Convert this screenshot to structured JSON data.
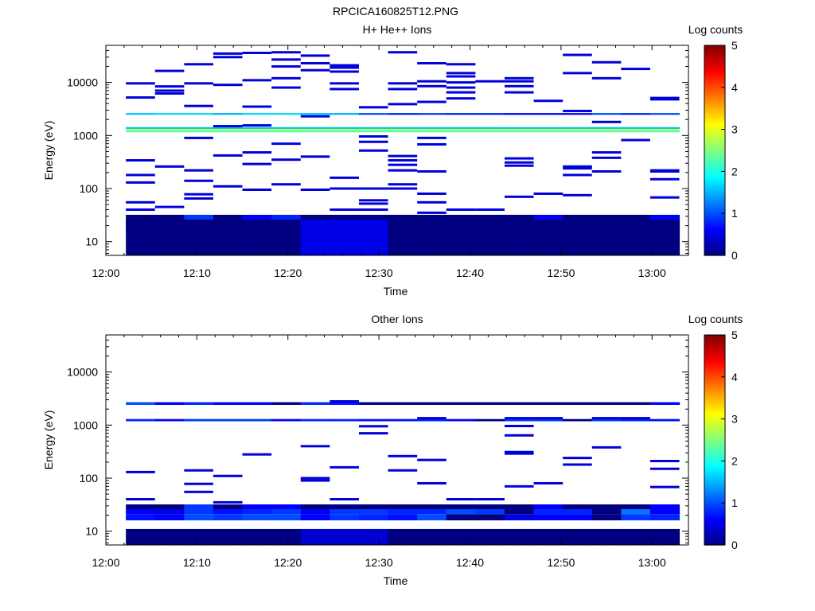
{
  "figure_title": "RPCICA160825T12.PNG",
  "colorbar": {
    "label": "Log counts",
    "min": 0,
    "max": 5,
    "ticks": [
      "0",
      "1",
      "2",
      "3",
      "4",
      "5"
    ],
    "colormap": "jet"
  },
  "chart_data": [
    {
      "type": "heatmap",
      "title": "H+ He++ Ions",
      "xlabel": "Time",
      "ylabel": "Energy (eV)",
      "x_tick_labels": [
        "12:00",
        "12:10",
        "12:20",
        "12:30",
        "12:40",
        "12:50",
        "13:00"
      ],
      "y_tick_labels": [
        "10",
        "100",
        "1000",
        "10000"
      ],
      "y_scale": "log",
      "ylim": [
        5.5,
        50000
      ],
      "xlim_minutes": [
        0,
        64
      ],
      "time_bins_minutes": [
        2.2,
        5.4,
        8.6,
        11.8,
        15.0,
        18.2,
        21.4,
        24.6,
        27.8,
        31.0,
        34.2,
        37.4,
        40.6,
        43.8,
        47.0,
        50.2,
        53.4,
        56.6,
        59.8,
        63.0
      ],
      "cells": [
        {
          "e": [
            16,
            21
          ],
          "v": [
            0.7,
            0.8,
            1.0,
            0.9,
            1.0,
            1.0,
            0.6,
            0.9,
            0.8,
            0.7,
            1.0,
            0,
            0,
            0.5,
            0.6,
            0.6,
            0,
            0.9,
            0.8
          ]
        },
        {
          "e": [
            21,
            26
          ],
          "v": [
            0.6,
            0.6,
            0.9,
            0.7,
            0.8,
            0.9,
            0.6,
            0.9,
            0.9,
            0.8,
            0.8,
            1.0,
            0.9,
            0,
            0.8,
            0.8,
            0,
            1.2,
            0.6
          ]
        },
        {
          "e": [
            26,
            32
          ],
          "v": [
            0,
            0,
            0.9,
            0,
            0.6,
            0.8,
            0,
            0,
            0,
            0,
            0,
            0,
            0,
            0,
            0.6,
            0,
            0,
            0,
            0.6
          ]
        },
        {
          "e": [
            5.5,
            26
          ],
          "v": [
            0,
            0,
            0,
            0,
            0,
            0,
            0.5,
            0.5,
            0.5,
            0,
            0,
            0,
            0,
            0,
            0,
            0,
            0,
            0,
            0
          ]
        },
        {
          "e": [
            1150,
            1250
          ],
          "v": [
            2.2,
            2.2,
            2.2,
            2.2,
            2.2,
            2.2,
            2.2,
            2.2,
            2.2,
            2.2,
            2.2,
            2.2,
            2.2,
            2.2,
            2.2,
            2.2,
            2.2,
            2.2,
            2.2
          ]
        },
        {
          "e": [
            1250,
            1330
          ],
          "v": [
            3.0,
            3.0,
            3.0,
            3.0,
            3.0,
            3.0,
            3.0,
            3.0,
            3.0,
            3.0,
            3.0,
            3.0,
            3.0,
            3.0,
            3.0,
            3.0,
            3.0,
            3.0,
            3.0
          ]
        },
        {
          "e": [
            1330,
            1440
          ],
          "v": [
            1.6,
            1.6,
            1.6,
            1.6,
            1.6,
            1.6,
            1.6,
            1.6,
            1.6,
            1.6,
            1.6,
            1.6,
            1.6,
            1.6,
            1.6,
            1.6,
            1.6,
            1.6,
            1.6
          ]
        },
        {
          "e": [
            2450,
            2650
          ],
          "v": [
            1.6,
            1.7,
            1.7,
            1.5,
            1.7,
            1.7,
            1.6,
            1.5,
            1.0,
            0.8,
            0.9,
            0.8,
            0.8,
            0.6,
            0.6,
            0.6,
            1.0,
            0.8,
            1.0
          ]
        }
      ],
      "lines": [
        [
          0,
          40
        ],
        [
          0,
          55
        ],
        [
          0,
          130
        ],
        [
          0,
          180
        ],
        [
          0,
          340
        ],
        [
          0,
          5200
        ],
        [
          0,
          9600
        ],
        [
          1,
          45
        ],
        [
          1,
          260
        ],
        [
          1,
          6200
        ],
        [
          1,
          7000
        ],
        [
          1,
          8400
        ],
        [
          1,
          16500
        ],
        [
          2,
          65
        ],
        [
          2,
          78
        ],
        [
          2,
          140
        ],
        [
          2,
          220
        ],
        [
          2,
          900
        ],
        [
          2,
          3600
        ],
        [
          2,
          9600
        ],
        [
          2,
          22000
        ],
        [
          3,
          110
        ],
        [
          3,
          420
        ],
        [
          3,
          1500
        ],
        [
          3,
          9000
        ],
        [
          3,
          30000
        ],
        [
          3,
          35000
        ],
        [
          4,
          95
        ],
        [
          4,
          290
        ],
        [
          4,
          480
        ],
        [
          4,
          1550
        ],
        [
          4,
          3500
        ],
        [
          4,
          11000
        ],
        [
          4,
          36000
        ],
        [
          5,
          120
        ],
        [
          5,
          350
        ],
        [
          5,
          700
        ],
        [
          5,
          8000
        ],
        [
          5,
          12000
        ],
        [
          5,
          20000
        ],
        [
          5,
          27000
        ],
        [
          5,
          37000
        ],
        [
          6,
          95
        ],
        [
          6,
          400
        ],
        [
          6,
          2300
        ],
        [
          6,
          17000
        ],
        [
          6,
          23000
        ],
        [
          6,
          32000
        ],
        [
          7,
          40
        ],
        [
          7,
          100
        ],
        [
          7,
          160
        ],
        [
          7,
          7500
        ],
        [
          7,
          9600
        ],
        [
          7,
          16000
        ],
        [
          7,
          19000
        ],
        [
          7,
          21000
        ],
        [
          8,
          40
        ],
        [
          8,
          52
        ],
        [
          8,
          60
        ],
        [
          8,
          100
        ],
        [
          8,
          520
        ],
        [
          8,
          760
        ],
        [
          8,
          960
        ],
        [
          8,
          3400
        ],
        [
          9,
          100
        ],
        [
          9,
          120
        ],
        [
          9,
          220
        ],
        [
          9,
          280
        ],
        [
          9,
          340
        ],
        [
          9,
          410
        ],
        [
          9,
          3900
        ],
        [
          9,
          7500
        ],
        [
          9,
          9600
        ],
        [
          9,
          37000
        ],
        [
          10,
          35
        ],
        [
          10,
          55
        ],
        [
          10,
          80
        ],
        [
          10,
          210
        ],
        [
          10,
          680
        ],
        [
          10,
          900
        ],
        [
          10,
          4300
        ],
        [
          10,
          8500
        ],
        [
          10,
          10500
        ],
        [
          10,
          23000
        ],
        [
          11,
          40
        ],
        [
          11,
          5000
        ],
        [
          11,
          6500
        ],
        [
          11,
          8000
        ],
        [
          11,
          10000
        ],
        [
          11,
          13000
        ],
        [
          11,
          15000
        ],
        [
          11,
          22000
        ],
        [
          12,
          40
        ],
        [
          12,
          10500
        ],
        [
          13,
          70
        ],
        [
          13,
          270
        ],
        [
          13,
          310
        ],
        [
          13,
          370
        ],
        [
          13,
          6500
        ],
        [
          13,
          8500
        ],
        [
          13,
          10500
        ],
        [
          13,
          12000
        ],
        [
          14,
          80
        ],
        [
          14,
          4500
        ],
        [
          15,
          75
        ],
        [
          15,
          180
        ],
        [
          15,
          240
        ],
        [
          15,
          260
        ],
        [
          15,
          2900
        ],
        [
          15,
          15000
        ],
        [
          15,
          33000
        ],
        [
          16,
          210
        ],
        [
          16,
          380
        ],
        [
          16,
          480
        ],
        [
          16,
          1800
        ],
        [
          16,
          12000
        ],
        [
          16,
          24000
        ],
        [
          17,
          820
        ],
        [
          17,
          18000
        ],
        [
          18,
          68
        ],
        [
          18,
          150
        ],
        [
          18,
          210
        ],
        [
          18,
          220
        ],
        [
          18,
          4800
        ],
        [
          18,
          5100
        ]
      ]
    },
    {
      "type": "heatmap",
      "title": "Other Ions",
      "xlabel": "Time",
      "ylabel": "Energy (eV)",
      "x_tick_labels": [
        "12:00",
        "12:10",
        "12:20",
        "12:30",
        "12:40",
        "12:50",
        "13:00"
      ],
      "y_tick_labels": [
        "10",
        "100",
        "1000",
        "10000"
      ],
      "y_scale": "log",
      "ylim": [
        5.5,
        50000
      ],
      "xlim_minutes": [
        0,
        64
      ],
      "time_bins_minutes": [
        2.2,
        5.4,
        8.6,
        11.8,
        15.0,
        18.2,
        21.4,
        24.6,
        27.8,
        31.0,
        34.2,
        37.4,
        40.6,
        43.8,
        47.0,
        50.2,
        53.4,
        56.6,
        59.8,
        63.0
      ],
      "cells": [
        {
          "e": [
            16,
            21
          ],
          "v": [
            0.7,
            0.6,
            1.0,
            0.9,
            1.0,
            1.0,
            0.6,
            0.9,
            0.8,
            0.7,
            1.0,
            0,
            0,
            0.5,
            0.6,
            0.6,
            0,
            0.9,
            0.8
          ]
        },
        {
          "e": [
            21,
            26
          ],
          "v": [
            0.6,
            0.5,
            0.9,
            0.7,
            0.8,
            0.9,
            0.6,
            0.9,
            0.9,
            0.8,
            0.8,
            1.0,
            0.9,
            0,
            0.8,
            0.8,
            0,
            1.2,
            0.6
          ]
        },
        {
          "e": [
            26,
            32
          ],
          "v": [
            0,
            0,
            0.9,
            0,
            0.6,
            0.6,
            0,
            0,
            0,
            0,
            0,
            0,
            0,
            0,
            0.6,
            0,
            0,
            0,
            0.6
          ]
        },
        {
          "e": [
            5.5,
            11
          ],
          "v": [
            0,
            0,
            0,
            0,
            0,
            0,
            0.4,
            0.4,
            0.4,
            0,
            0,
            0,
            0,
            0,
            0,
            0,
            0,
            0,
            0
          ]
        },
        {
          "e": [
            1180,
            1300
          ],
          "v": [
            0.8,
            0.6,
            0.9,
            0.9,
            0.9,
            0.6,
            0.8,
            0.8,
            0.7,
            0.7,
            0.8,
            0.6,
            0,
            0.9,
            0.9,
            0,
            0.9,
            0.8,
            0.7
          ]
        },
        {
          "e": [
            2400,
            2700
          ],
          "v": [
            1.0,
            0.6,
            0.8,
            0.6,
            0.6,
            0,
            0.8,
            0.7,
            0,
            0,
            0,
            0,
            0,
            0,
            0,
            0,
            0,
            0,
            0.6
          ]
        }
      ],
      "lines": [
        [
          0,
          40
        ],
        [
          0,
          130
        ],
        [
          2,
          55
        ],
        [
          2,
          78
        ],
        [
          2,
          140
        ],
        [
          3,
          35
        ],
        [
          3,
          110
        ],
        [
          4,
          280
        ],
        [
          6,
          90
        ],
        [
          6,
          100
        ],
        [
          6,
          400
        ],
        [
          7,
          40
        ],
        [
          7,
          160
        ],
        [
          7,
          2800
        ],
        [
          8,
          700
        ],
        [
          8,
          950
        ],
        [
          9,
          140
        ],
        [
          9,
          260
        ],
        [
          10,
          80
        ],
        [
          10,
          220
        ],
        [
          10,
          1350
        ],
        [
          11,
          40
        ],
        [
          12,
          40
        ],
        [
          13,
          70
        ],
        [
          13,
          290
        ],
        [
          13,
          310
        ],
        [
          13,
          640
        ],
        [
          13,
          960
        ],
        [
          13,
          1350
        ],
        [
          14,
          80
        ],
        [
          14,
          1350
        ],
        [
          15,
          180
        ],
        [
          15,
          240
        ],
        [
          16,
          380
        ],
        [
          16,
          1350
        ],
        [
          17,
          1350
        ],
        [
          18,
          68
        ],
        [
          18,
          150
        ],
        [
          18,
          210
        ]
      ]
    }
  ]
}
